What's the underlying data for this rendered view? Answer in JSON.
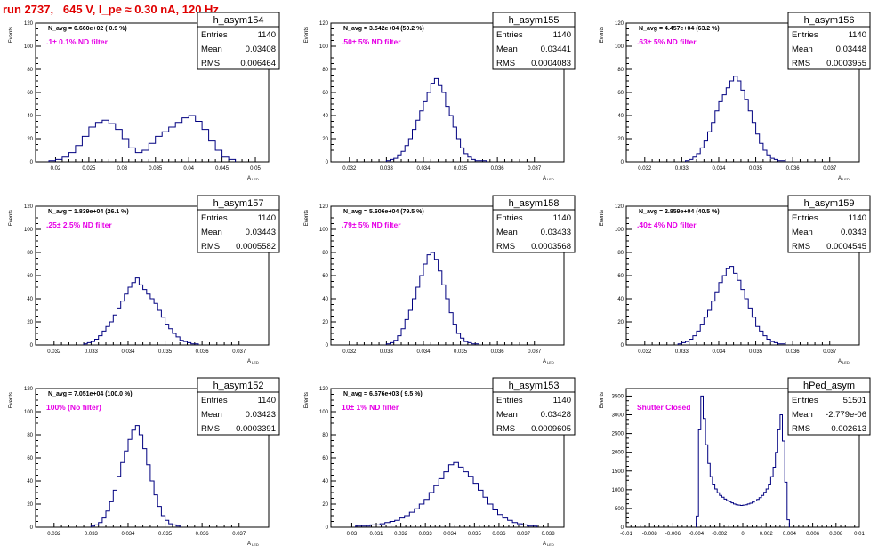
{
  "header": {
    "title": "run 2737,   645 V, I_pe ≈ 0.30 nA, 120 Hz"
  },
  "chart_data": [
    {
      "type": "histogram",
      "hist_name": "h_asym154",
      "stats": {
        "entries_label": "Entries",
        "entries": "1140",
        "mean_label": "Mean",
        "mean": "0.03408",
        "rms_label": "RMS",
        "rms": "0.006464"
      },
      "navg": "N_avg = 6.660e+02 ( 0.9 %)",
      "filter_label": ".1± 0.1% ND filter",
      "ylabel": "Events",
      "xlabel": "A",
      "xlabel_sub": "LED",
      "xlim": [
        0.017,
        0.052
      ],
      "ylim": [
        0,
        120
      ],
      "yticks": [
        "0",
        "20",
        "40",
        "60",
        "80",
        "100",
        "120"
      ],
      "xticks": [
        "0.02",
        "0.025",
        "0.03",
        "0.035",
        "0.04",
        "0.045",
        "0.05"
      ],
      "bin_centers": [
        0.0195,
        0.0205,
        0.0215,
        0.0225,
        0.0235,
        0.0245,
        0.0255,
        0.0265,
        0.0275,
        0.0285,
        0.0295,
        0.0305,
        0.0315,
        0.0325,
        0.0335,
        0.0345,
        0.0355,
        0.0365,
        0.0375,
        0.0385,
        0.0395,
        0.0405,
        0.0415,
        0.0425,
        0.0435,
        0.0445,
        0.0455,
        0.0465
      ],
      "counts": [
        1,
        2,
        4,
        8,
        14,
        22,
        30,
        34,
        36,
        33,
        28,
        20,
        12,
        8,
        10,
        16,
        22,
        26,
        30,
        34,
        38,
        40,
        35,
        28,
        18,
        10,
        4,
        2
      ]
    },
    {
      "type": "histogram",
      "hist_name": "h_asym155",
      "stats": {
        "entries_label": "Entries",
        "entries": "1140",
        "mean_label": "Mean",
        "mean": "0.03441",
        "rms_label": "RMS",
        "rms": "0.0004083"
      },
      "navg": "N_avg = 3.542e+04 (50.2 %)",
      "filter_label": ".50± 5% ND filter",
      "ylabel": "Events",
      "xlabel": "A",
      "xlabel_sub": "LED",
      "xlim": [
        0.0315,
        0.0378
      ],
      "ylim": [
        0,
        120
      ],
      "yticks": [
        "0",
        "20",
        "40",
        "60",
        "80",
        "100",
        "120"
      ],
      "xticks": [
        "0.032",
        "0.033",
        "0.034",
        "0.035",
        "0.036",
        "0.037"
      ],
      "bin_centers": [
        0.03305,
        0.03315,
        0.03325,
        0.03335,
        0.03345,
        0.03355,
        0.03365,
        0.03375,
        0.03385,
        0.03395,
        0.03405,
        0.03415,
        0.03425,
        0.03435,
        0.03445,
        0.03455,
        0.03465,
        0.03475,
        0.03485,
        0.03495,
        0.03505,
        0.03515,
        0.03525,
        0.03535,
        0.03545,
        0.03555,
        0.03565
      ],
      "counts": [
        1,
        2,
        3,
        6,
        9,
        14,
        20,
        28,
        36,
        44,
        52,
        60,
        68,
        72,
        66,
        60,
        48,
        40,
        30,
        20,
        12,
        7,
        4,
        2,
        1,
        1,
        1
      ]
    },
    {
      "type": "histogram",
      "hist_name": "h_asym156",
      "stats": {
        "entries_label": "Entries",
        "entries": "1140",
        "mean_label": "Mean",
        "mean": "0.03448",
        "rms_label": "RMS",
        "rms": "0.0003955"
      },
      "navg": "N_avg = 4.457e+04 (63.2 %)",
      "filter_label": ".63± 5% ND filter",
      "ylabel": "Events",
      "xlabel": "A",
      "xlabel_sub": "LED",
      "xlim": [
        0.0315,
        0.0378
      ],
      "ylim": [
        0,
        120
      ],
      "yticks": [
        "0",
        "20",
        "40",
        "60",
        "80",
        "100",
        "120"
      ],
      "xticks": [
        "0.032",
        "0.033",
        "0.034",
        "0.035",
        "0.036",
        "0.037"
      ],
      "bin_centers": [
        0.03315,
        0.03325,
        0.03335,
        0.03345,
        0.03355,
        0.03365,
        0.03375,
        0.03385,
        0.03395,
        0.03405,
        0.03415,
        0.03425,
        0.03435,
        0.03445,
        0.03455,
        0.03465,
        0.03475,
        0.03485,
        0.03495,
        0.03505,
        0.03515,
        0.03525,
        0.03535,
        0.03545,
        0.03555,
        0.03565,
        0.03575
      ],
      "counts": [
        1,
        2,
        4,
        7,
        12,
        18,
        26,
        34,
        44,
        52,
        58,
        64,
        70,
        74,
        70,
        62,
        54,
        44,
        34,
        24,
        16,
        10,
        6,
        3,
        2,
        1,
        1
      ]
    },
    {
      "type": "histogram",
      "hist_name": "h_asym157",
      "stats": {
        "entries_label": "Entries",
        "entries": "1140",
        "mean_label": "Mean",
        "mean": "0.03443",
        "rms_label": "RMS",
        "rms": "0.0005582"
      },
      "navg": "N_avg = 1.839e+04 (26.1 %)",
      "filter_label": ".25± 2.5% ND filter",
      "ylabel": "Events",
      "xlabel": "A",
      "xlabel_sub": "LED",
      "xlim": [
        0.0315,
        0.0378
      ],
      "ylim": [
        0,
        120
      ],
      "yticks": [
        "0",
        "20",
        "40",
        "60",
        "80",
        "100",
        "120"
      ],
      "xticks": [
        "0.032",
        "0.033",
        "0.034",
        "0.035",
        "0.036",
        "0.037"
      ],
      "bin_centers": [
        0.03285,
        0.03295,
        0.03305,
        0.03315,
        0.03325,
        0.03335,
        0.03345,
        0.03355,
        0.03365,
        0.03375,
        0.03385,
        0.03395,
        0.03405,
        0.03415,
        0.03425,
        0.03435,
        0.03445,
        0.03455,
        0.03465,
        0.03475,
        0.03485,
        0.03495,
        0.03505,
        0.03515,
        0.03525,
        0.03535,
        0.03545,
        0.03555,
        0.03565,
        0.03575,
        0.03585
      ],
      "counts": [
        1,
        2,
        3,
        5,
        8,
        12,
        16,
        20,
        26,
        32,
        38,
        44,
        50,
        54,
        58,
        52,
        48,
        44,
        40,
        36,
        30,
        24,
        18,
        14,
        10,
        7,
        4,
        3,
        2,
        1,
        1
      ]
    },
    {
      "type": "histogram",
      "hist_name": "h_asym158",
      "stats": {
        "entries_label": "Entries",
        "entries": "1140",
        "mean_label": "Mean",
        "mean": "0.03433",
        "rms_label": "RMS",
        "rms": "0.0003568"
      },
      "navg": "N_avg = 5.606e+04 (79.5 %)",
      "filter_label": ".79± 5% ND filter",
      "ylabel": "Events",
      "xlabel": "A",
      "xlabel_sub": "LED",
      "xlim": [
        0.0315,
        0.0378
      ],
      "ylim": [
        0,
        120
      ],
      "yticks": [
        "0",
        "20",
        "40",
        "60",
        "80",
        "100",
        "120"
      ],
      "xticks": [
        "0.032",
        "0.033",
        "0.034",
        "0.035",
        "0.036",
        "0.037"
      ],
      "bin_centers": [
        0.03305,
        0.03315,
        0.03325,
        0.03335,
        0.03345,
        0.03355,
        0.03365,
        0.03375,
        0.03385,
        0.03395,
        0.03405,
        0.03415,
        0.03425,
        0.03435,
        0.03445,
        0.03455,
        0.03465,
        0.03475,
        0.03485,
        0.03495,
        0.03505,
        0.03515,
        0.03525,
        0.03535,
        0.03545
      ],
      "counts": [
        1,
        2,
        4,
        8,
        14,
        22,
        30,
        40,
        50,
        60,
        70,
        78,
        80,
        74,
        64,
        52,
        40,
        28,
        18,
        10,
        6,
        3,
        2,
        1,
        1
      ]
    },
    {
      "type": "histogram",
      "hist_name": "h_asym159",
      "stats": {
        "entries_label": "Entries",
        "entries": "1140",
        "mean_label": "Mean",
        "mean": "0.0343",
        "rms_label": "RMS",
        "rms": "0.0004545"
      },
      "navg": "N_avg = 2.859e+04 (40.5 %)",
      "filter_label": ".40± 4% ND filter",
      "ylabel": "Events",
      "xlabel": "A",
      "xlabel_sub": "LED",
      "xlim": [
        0.0315,
        0.0378
      ],
      "ylim": [
        0,
        120
      ],
      "yticks": [
        "0",
        "20",
        "40",
        "60",
        "80",
        "100",
        "120"
      ],
      "xticks": [
        "0.032",
        "0.033",
        "0.034",
        "0.035",
        "0.036",
        "0.037"
      ],
      "bin_centers": [
        0.03295,
        0.03305,
        0.03315,
        0.03325,
        0.03335,
        0.03345,
        0.03355,
        0.03365,
        0.03375,
        0.03385,
        0.03395,
        0.03405,
        0.03415,
        0.03425,
        0.03435,
        0.03445,
        0.03455,
        0.03465,
        0.03475,
        0.03485,
        0.03495,
        0.03505,
        0.03515,
        0.03525,
        0.03535,
        0.03545,
        0.03555,
        0.03565,
        0.03575
      ],
      "counts": [
        1,
        2,
        3,
        5,
        8,
        12,
        18,
        24,
        30,
        38,
        46,
        54,
        60,
        66,
        68,
        62,
        56,
        48,
        40,
        32,
        24,
        16,
        12,
        8,
        5,
        3,
        2,
        1,
        1
      ]
    },
    {
      "type": "histogram",
      "hist_name": "h_asym152",
      "stats": {
        "entries_label": "Entries",
        "entries": "1140",
        "mean_label": "Mean",
        "mean": "0.03423",
        "rms_label": "RMS",
        "rms": "0.0003391"
      },
      "navg": "N_avg = 7.051e+04 (100.0 %)",
      "filter_label": "100% (No filter)",
      "ylabel": "Events",
      "xlabel": "A",
      "xlabel_sub": "LED",
      "xlim": [
        0.0315,
        0.0378
      ],
      "ylim": [
        0,
        120
      ],
      "yticks": [
        "0",
        "20",
        "40",
        "60",
        "80",
        "100",
        "120"
      ],
      "xticks": [
        "0.032",
        "0.033",
        "0.034",
        "0.035",
        "0.036",
        "0.037"
      ],
      "bin_centers": [
        0.03305,
        0.03315,
        0.03325,
        0.03335,
        0.03345,
        0.03355,
        0.03365,
        0.03375,
        0.03385,
        0.03395,
        0.03405,
        0.03415,
        0.03425,
        0.03435,
        0.03445,
        0.03455,
        0.03465,
        0.03475,
        0.03485,
        0.03495,
        0.03505,
        0.03515,
        0.03525,
        0.03535
      ],
      "counts": [
        1,
        2,
        4,
        8,
        14,
        22,
        32,
        44,
        56,
        66,
        76,
        84,
        88,
        80,
        68,
        54,
        40,
        28,
        18,
        10,
        6,
        3,
        2,
        1
      ]
    },
    {
      "type": "histogram",
      "hist_name": "h_asym153",
      "stats": {
        "entries_label": "Entries",
        "entries": "1140",
        "mean_label": "Mean",
        "mean": "0.03428",
        "rms_label": "RMS",
        "rms": "0.0009605"
      },
      "navg": "N_avg = 6.676e+03 ( 9.5 %)",
      "filter_label": "10± 1% ND filter",
      "ylabel": "Events",
      "xlabel": "A",
      "xlabel_sub": "LED",
      "xlim": [
        0.02915,
        0.03865
      ],
      "ylim": [
        0,
        120
      ],
      "yticks": [
        "0",
        "20",
        "40",
        "60",
        "80",
        "100",
        "120"
      ],
      "xticks": [
        "0.03",
        "0.031",
        "0.032",
        "0.033",
        "0.034",
        "0.035",
        "0.036",
        "0.037",
        "0.038"
      ],
      "bin_centers": [
        0.03025,
        0.03045,
        0.03065,
        0.03085,
        0.03105,
        0.03125,
        0.03145,
        0.03165,
        0.03185,
        0.03205,
        0.03225,
        0.03245,
        0.03265,
        0.03285,
        0.03305,
        0.03325,
        0.03345,
        0.03365,
        0.03385,
        0.03405,
        0.03425,
        0.03445,
        0.03465,
        0.03485,
        0.03505,
        0.03525,
        0.03545,
        0.03565,
        0.03585,
        0.03605,
        0.03625,
        0.03645,
        0.03665,
        0.03685,
        0.03705,
        0.03725,
        0.03745
      ],
      "counts": [
        1,
        1,
        1,
        2,
        2,
        3,
        4,
        5,
        6,
        8,
        10,
        13,
        16,
        20,
        24,
        30,
        36,
        42,
        48,
        54,
        56,
        52,
        48,
        44,
        38,
        32,
        26,
        20,
        15,
        11,
        8,
        6,
        4,
        3,
        2,
        1,
        1
      ]
    },
    {
      "type": "histogram",
      "hist_name": "hPed_asym",
      "stats": {
        "entries_label": "Entries",
        "entries": "51501",
        "mean_label": "Mean",
        "mean": "-2.779e-06",
        "rms_label": "RMS",
        "rms": "0.002613"
      },
      "navg": "",
      "filter_label": "Shutter Closed",
      "ylabel": "Events",
      "xlabel": "",
      "xlabel_sub": "",
      "xlim": [
        -0.01,
        0.01
      ],
      "ylim": [
        0,
        3700
      ],
      "yticks": [
        "0",
        "500",
        "1000",
        "1500",
        "2000",
        "2500",
        "3000",
        "3500"
      ],
      "xticks": [
        "-0.01",
        "-0.008",
        "-0.006",
        "-0.004",
        "-0.002",
        "0",
        "0.002",
        "0.004",
        "0.006",
        "0.008",
        "0.01"
      ],
      "bin_centers": [
        -0.0039,
        -0.0037,
        -0.0035,
        -0.0033,
        -0.0031,
        -0.0029,
        -0.0027,
        -0.0025,
        -0.0023,
        -0.0021,
        -0.0019,
        -0.0017,
        -0.0015,
        -0.0013,
        -0.0011,
        -0.0009,
        -0.0007,
        -0.0005,
        -0.0003,
        -0.0001,
        0.0001,
        0.0003,
        0.0005,
        0.0007,
        0.0009,
        0.0011,
        0.0013,
        0.0015,
        0.0017,
        0.0019,
        0.0021,
        0.0023,
        0.0025,
        0.0027,
        0.0029,
        0.0031,
        0.0033,
        0.0035,
        0.0037,
        0.0039
      ],
      "counts": [
        300,
        2600,
        3500,
        2900,
        2200,
        1700,
        1350,
        1150,
        1020,
        920,
        850,
        800,
        750,
        710,
        680,
        650,
        620,
        600,
        590,
        580,
        590,
        600,
        620,
        640,
        670,
        700,
        740,
        790,
        850,
        930,
        1020,
        1150,
        1350,
        1600,
        2000,
        2600,
        3000,
        2300,
        1200,
        200
      ]
    }
  ]
}
